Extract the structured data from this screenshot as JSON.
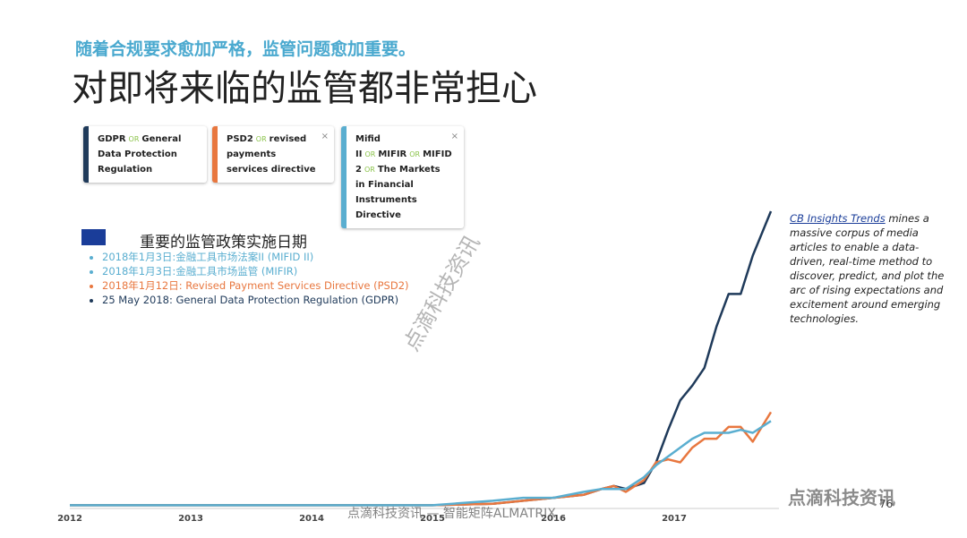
{
  "subtitle": "随着合规要求愈加严格，监管问题愈加重要。",
  "title": "对即将来临的监管都非常担心",
  "or_word": "OR",
  "close_icon": "×",
  "policy": {
    "heading": "重要的监管政策实施日期",
    "items": [
      {
        "text": "2018年1月3日:金融工具市场法案II (MIFID II)",
        "color": "#5aaed0"
      },
      {
        "text": "2018年1月3日:金融工具市场监管 (MIFIR)",
        "color": "#5aaed0"
      },
      {
        "text": "2018年1月12日: Revised Payment Services Directive (PSD2)",
        "color": "#e8773f"
      },
      {
        "text": "25 May 2018: General Data Protection Regulation (GDPR)",
        "color": "#1f3a5a"
      }
    ]
  },
  "note": {
    "link": "CB Insights Trends",
    "text": "mines a massive corpus of media articles to enable a data-driven, real-time method to discover, predict, and plot the arc of rising expectations and excitement around emerging technologies."
  },
  "watermark": "点滴科技资讯",
  "footer": "点滴科技资讯 — 智能矩阵ALMATRIX",
  "logo": "点滴科技资讯",
  "page_number": "76",
  "chart_data": {
    "type": "line",
    "x": [
      2012,
      2012.5,
      2013,
      2013.5,
      2014,
      2014.5,
      2015,
      2015.5,
      2015.75,
      2016,
      2016.25,
      2016.4,
      2016.5,
      2016.6,
      2016.75,
      2016.85,
      2016.95,
      2017.05,
      2017.15,
      2017.25,
      2017.35,
      2017.45,
      2017.55,
      2017.65,
      2017.8
    ],
    "xlim": [
      2012,
      2018
    ],
    "xticks": [
      2012,
      2013,
      2014,
      2015,
      2016,
      2017
    ],
    "ylim": [
      0,
      100
    ],
    "series": [
      {
        "terms": [
          "GDPR",
          "General Data Protection Regulation"
        ],
        "color": "#1f3a5a",
        "values": [
          0.5,
          0.5,
          0.5,
          0.5,
          0.5,
          0.5,
          0.5,
          1,
          2,
          3,
          4,
          6,
          7,
          6,
          8,
          15,
          26,
          36,
          41,
          47,
          61,
          72,
          72,
          85,
          100
        ]
      },
      {
        "terms": [
          "PSD2",
          "revised payments services directive"
        ],
        "color": "#e8773f",
        "values": [
          0.5,
          0.5,
          0.5,
          0.5,
          0.5,
          0.5,
          0.5,
          1,
          2,
          3,
          4,
          6,
          7,
          5,
          9,
          15,
          16,
          15,
          20,
          23,
          23,
          27,
          27,
          22,
          32
        ]
      },
      {
        "terms": [
          "Mifid II",
          "MIFIR",
          "MIFID 2",
          "The Markets in Financial Instruments Directive"
        ],
        "color": "#5aaed0",
        "values": [
          0.5,
          0.5,
          0.5,
          0.5,
          0.5,
          0.5,
          0.5,
          2,
          3,
          3,
          5,
          6,
          6,
          6,
          10,
          14,
          17,
          20,
          23,
          25,
          25,
          25,
          26,
          25,
          29
        ]
      }
    ]
  }
}
